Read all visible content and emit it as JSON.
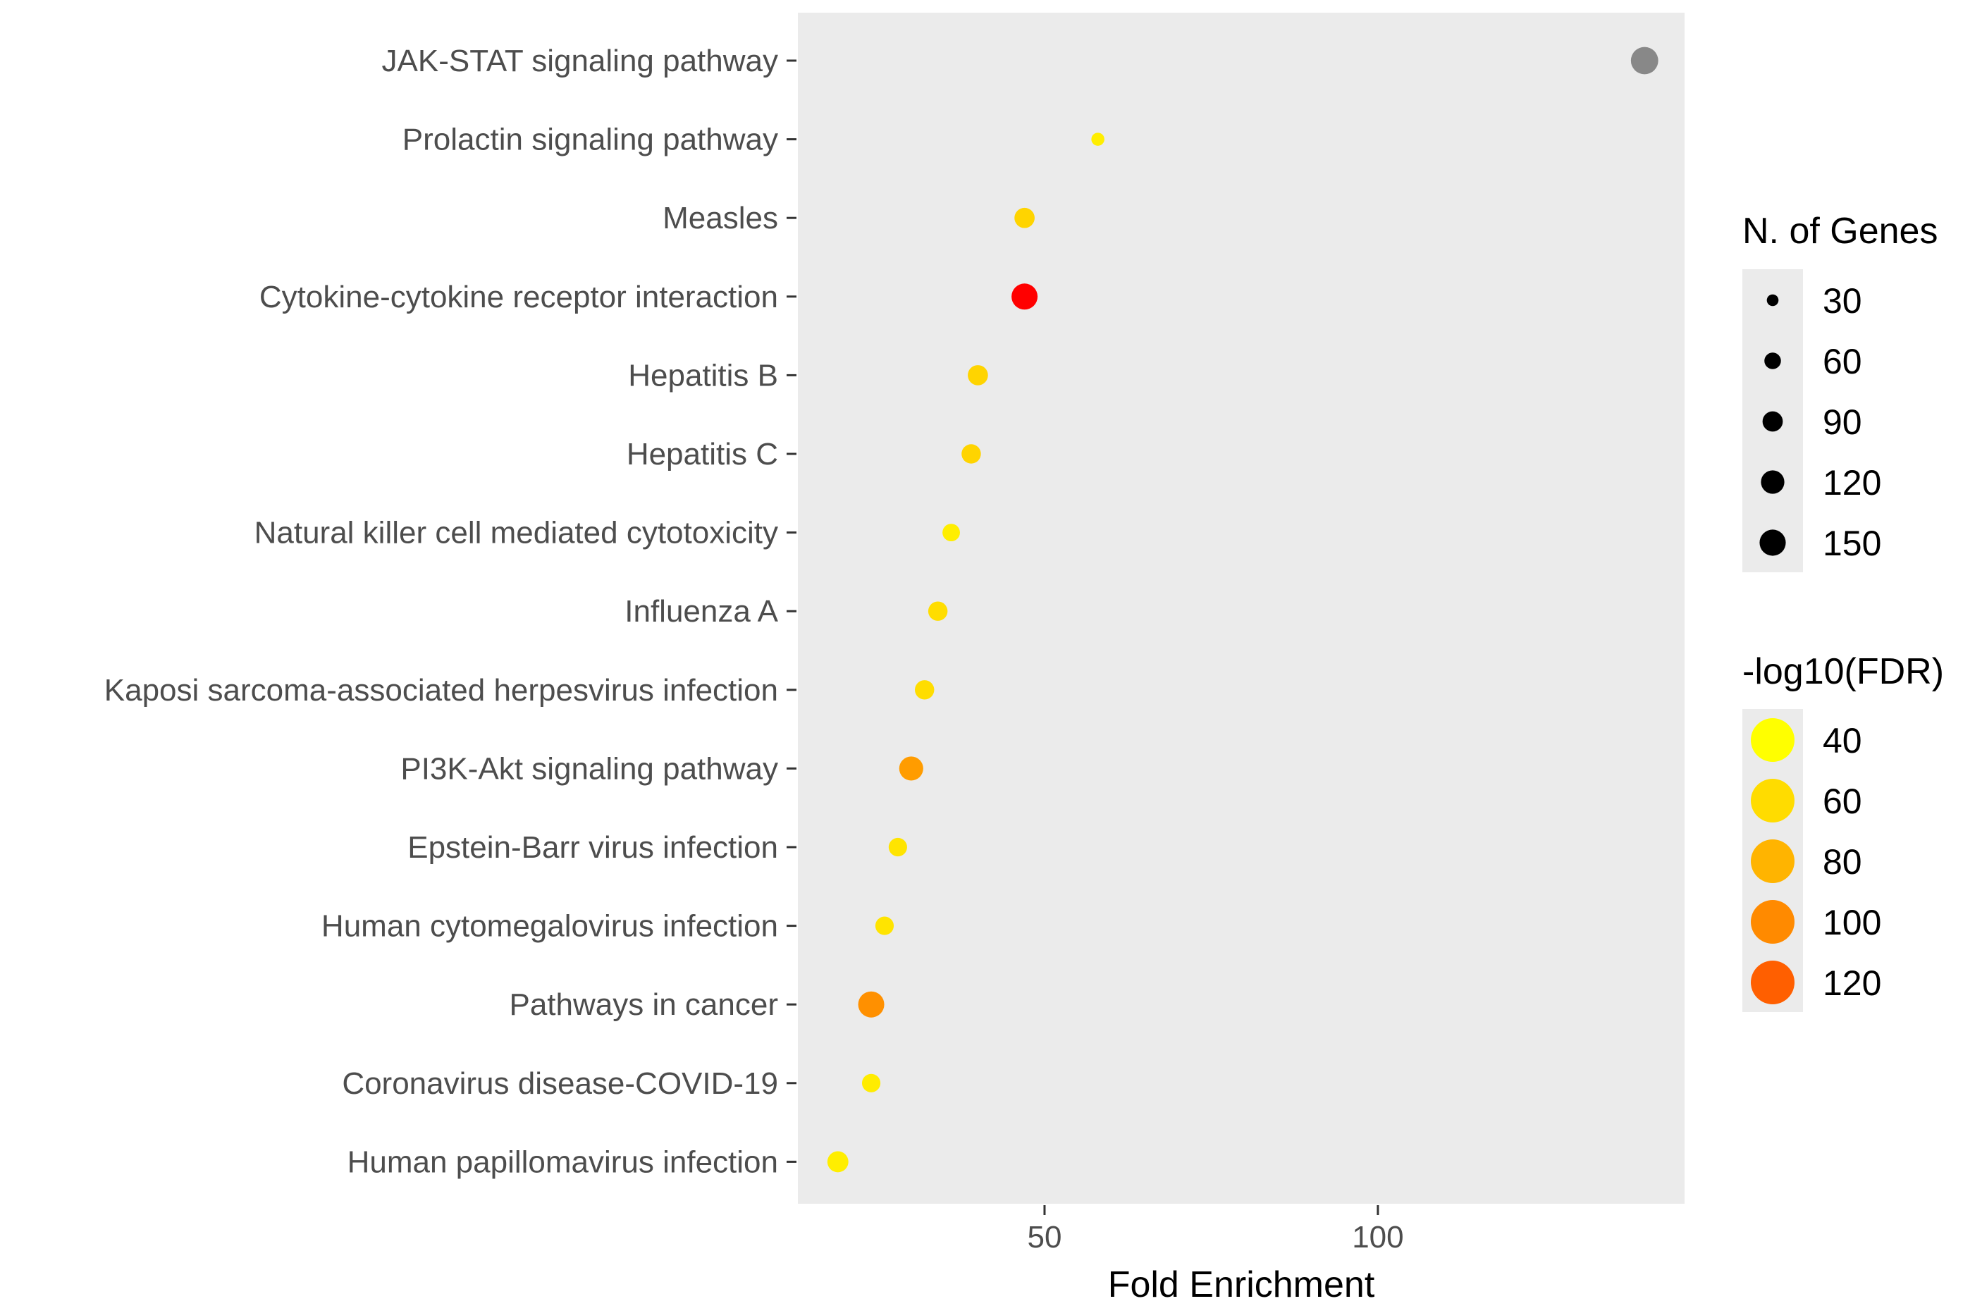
{
  "chart_data": {
    "type": "scatter",
    "title": "",
    "xlabel": "Fold Enrichment",
    "ylabel": "",
    "xlim": [
      13,
      146
    ],
    "x_ticks": [
      50,
      100
    ],
    "grid": false,
    "panel_background": "#ebebeb",
    "categories": [
      "JAK-STAT signaling pathway",
      "Prolactin signaling pathway",
      "Measles",
      "Cytokine-cytokine receptor interaction",
      "Hepatitis B",
      "Hepatitis C",
      "Natural killer cell mediated cytotoxicity",
      "Influenza A",
      "Kaposi sarcoma-associated herpesvirus infection",
      "PI3K-Akt signaling pathway",
      "Epstein-Barr virus infection",
      "Human cytomegalovirus infection",
      "Pathways in cancer",
      "Coronavirus disease-COVID-19",
      "Human papillomavirus infection"
    ],
    "points": [
      {
        "category": "JAK-STAT signaling pathway",
        "fold_enrichment": 140,
        "n_genes": 110,
        "neg_log10_fdr": null,
        "color": "#888888"
      },
      {
        "category": "Prolactin signaling pathway",
        "fold_enrichment": 58,
        "n_genes": 25,
        "neg_log10_fdr": 40,
        "color": "#ffee00"
      },
      {
        "category": "Measles",
        "fold_enrichment": 47,
        "n_genes": 60,
        "neg_log10_fdr": 60,
        "color": "#ffd400"
      },
      {
        "category": "Cytokine-cytokine receptor interaction",
        "fold_enrichment": 47,
        "n_genes": 100,
        "neg_log10_fdr": 140,
        "color": "#ff0000"
      },
      {
        "category": "Hepatitis B",
        "fold_enrichment": 40,
        "n_genes": 60,
        "neg_log10_fdr": 60,
        "color": "#ffd400"
      },
      {
        "category": "Hepatitis C",
        "fold_enrichment": 39,
        "n_genes": 55,
        "neg_log10_fdr": 60,
        "color": "#ffd400"
      },
      {
        "category": "Natural killer cell mediated cytotoxicity",
        "fold_enrichment": 36,
        "n_genes": 45,
        "neg_log10_fdr": 45,
        "color": "#ffee00"
      },
      {
        "category": "Influenza A",
        "fold_enrichment": 34,
        "n_genes": 55,
        "neg_log10_fdr": 55,
        "color": "#ffdd00"
      },
      {
        "category": "Kaposi sarcoma-associated herpesvirus infection",
        "fold_enrichment": 32,
        "n_genes": 55,
        "neg_log10_fdr": 55,
        "color": "#ffdd00"
      },
      {
        "category": "PI3K-Akt signaling pathway",
        "fold_enrichment": 30,
        "n_genes": 85,
        "neg_log10_fdr": 95,
        "color": "#ff9c00"
      },
      {
        "category": "Epstein-Barr virus infection",
        "fold_enrichment": 28,
        "n_genes": 50,
        "neg_log10_fdr": 50,
        "color": "#ffe400"
      },
      {
        "category": "Human cytomegalovirus infection",
        "fold_enrichment": 26,
        "n_genes": 50,
        "neg_log10_fdr": 50,
        "color": "#ffe400"
      },
      {
        "category": "Pathways in cancer",
        "fold_enrichment": 24,
        "n_genes": 100,
        "neg_log10_fdr": 100,
        "color": "#ff9000"
      },
      {
        "category": "Coronavirus disease-COVID-19",
        "fold_enrichment": 24,
        "n_genes": 50,
        "neg_log10_fdr": 45,
        "color": "#ffec00"
      },
      {
        "category": "Human papillomavirus infection",
        "fold_enrichment": 19,
        "n_genes": 65,
        "neg_log10_fdr": 40,
        "color": "#ffee00"
      }
    ],
    "legends": [
      {
        "title": "N. of Genes",
        "type": "size",
        "color": "#000000",
        "entries": [
          {
            "label": "30",
            "value": 30
          },
          {
            "label": "60",
            "value": 60
          },
          {
            "label": "90",
            "value": 90
          },
          {
            "label": "120",
            "value": 120
          },
          {
            "label": "150",
            "value": 150
          }
        ]
      },
      {
        "title": "-log10(FDR)",
        "type": "color",
        "entries": [
          {
            "label": "40",
            "value": 40,
            "color": "#ffff00"
          },
          {
            "label": "60",
            "value": 60,
            "color": "#ffdc00"
          },
          {
            "label": "80",
            "value": 80,
            "color": "#ffb400"
          },
          {
            "label": "100",
            "value": 100,
            "color": "#ff8a00"
          },
          {
            "label": "120",
            "value": 120,
            "color": "#ff5f00"
          }
        ]
      }
    ],
    "legend_placement": "right"
  }
}
